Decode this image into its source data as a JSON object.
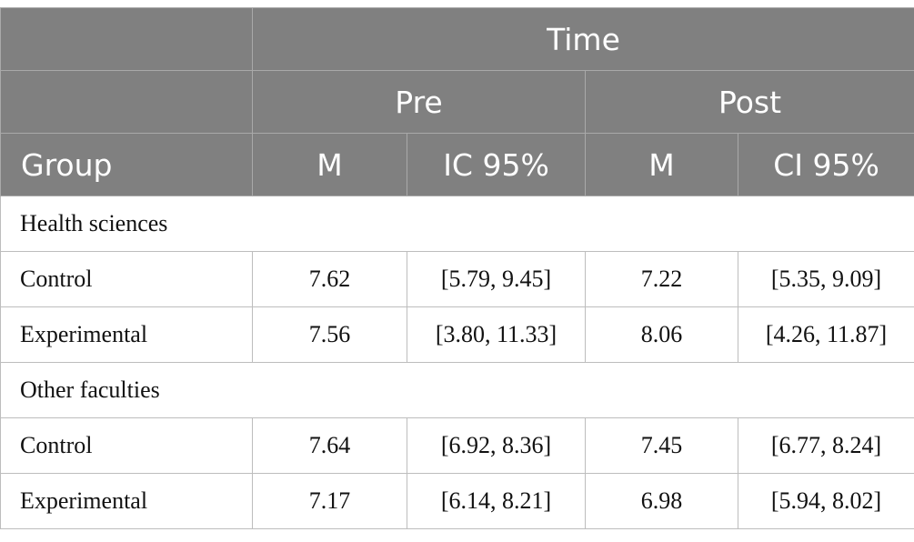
{
  "header": {
    "time": "Time",
    "pre": "Pre",
    "post": "Post",
    "group": "Group",
    "pre_m": "M",
    "pre_ci": "IC 95%",
    "post_m": "M",
    "post_ci": "CI 95%"
  },
  "sections": [
    {
      "title": "Health sciences",
      "rows": [
        {
          "group": "Control",
          "pre_m": "7.62",
          "pre_ci": "[5.79, 9.45]",
          "post_m": "7.22",
          "post_ci": "[5.35, 9.09]"
        },
        {
          "group": "Experimental",
          "pre_m": "7.56",
          "pre_ci": "[3.80, 11.33]",
          "post_m": "8.06",
          "post_ci": "[4.26, 11.87]"
        }
      ]
    },
    {
      "title": "Other faculties",
      "rows": [
        {
          "group": "Control",
          "pre_m": "7.64",
          "pre_ci": "[6.92, 8.36]",
          "post_m": "7.45",
          "post_ci": "[6.77, 8.24]"
        },
        {
          "group": "Experimental",
          "pre_m": "7.17",
          "pre_ci": "[6.14, 8.21]",
          "post_m": "6.98",
          "post_ci": "[5.94, 8.02]"
        }
      ]
    }
  ]
}
